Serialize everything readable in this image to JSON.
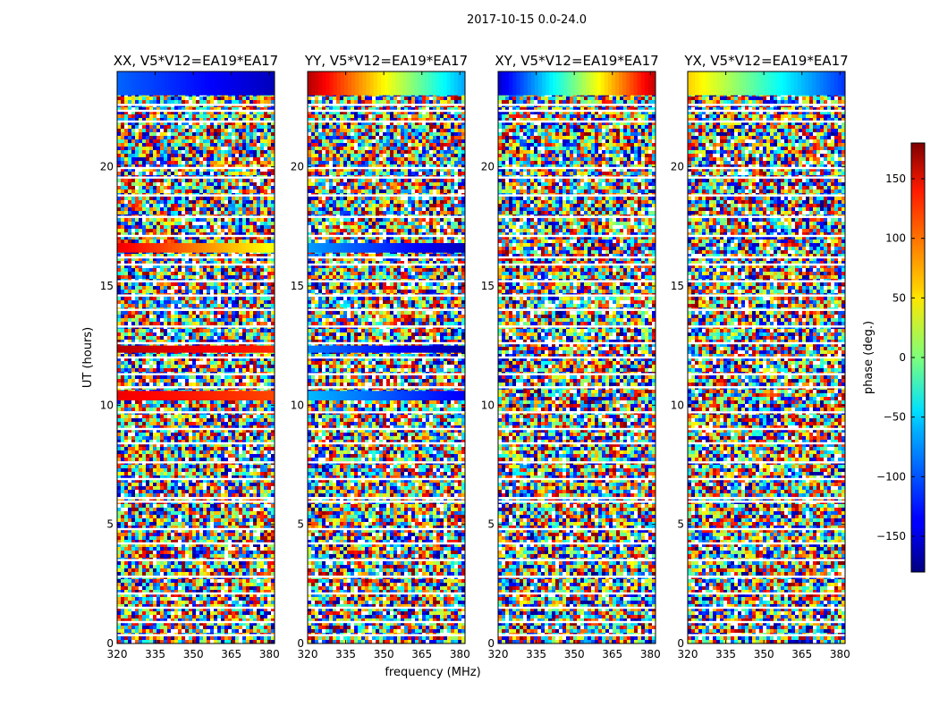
{
  "figure": {
    "suptitle": "2017-10-15 0.0-24.0"
  },
  "chart_data": [
    {
      "type": "heatmap",
      "title": "XX, V5*V12=EA19*EA17",
      "xlabel": "",
      "ylabel": "UT (hours)",
      "xlim": [
        320,
        382
      ],
      "ylim": [
        0,
        24
      ],
      "xticks": [
        320,
        335,
        350,
        365,
        380
      ],
      "yticks": [
        0,
        5,
        10,
        15,
        20
      ],
      "bands": [
        {
          "from": 23.0,
          "to": 24.0,
          "phase_start": -100,
          "phase_end": -160
        },
        {
          "from": 16.4,
          "to": 16.8,
          "phase_start": 140,
          "phase_end": 40
        },
        {
          "from": 12.2,
          "to": 12.5,
          "phase_start": 160,
          "phase_end": 120
        },
        {
          "from": 10.2,
          "to": 10.6,
          "phase_start": 140,
          "phase_end": 110
        }
      ]
    },
    {
      "type": "heatmap",
      "title": "YY, V5*V12=EA19*EA17",
      "xlabel": "frequency (MHz)",
      "ylabel": "",
      "xlim": [
        320,
        382
      ],
      "ylim": [
        0,
        24
      ],
      "xticks": [
        320,
        335,
        350,
        365,
        380
      ],
      "yticks": [
        0,
        5,
        10,
        15,
        20
      ],
      "bands": [
        {
          "from": 23.0,
          "to": 24.0,
          "phase_start": 160,
          "phase_end": -80
        },
        {
          "from": 16.4,
          "to": 16.8,
          "phase_start": -80,
          "phase_end": -160
        },
        {
          "from": 12.2,
          "to": 12.5,
          "phase_start": -90,
          "phase_end": -170
        },
        {
          "from": 10.2,
          "to": 10.6,
          "phase_start": -70,
          "phase_end": -140
        }
      ]
    },
    {
      "type": "heatmap",
      "title": "XY, V5*V12=EA19*EA17",
      "xlabel": "",
      "ylabel": "",
      "xlim": [
        320,
        382
      ],
      "ylim": [
        0,
        24
      ],
      "xticks": [
        320,
        335,
        350,
        365,
        380
      ],
      "yticks": [
        0,
        5,
        10,
        15,
        20
      ],
      "bands": [
        {
          "from": 23.0,
          "to": 24.0,
          "phase_start": -150,
          "phase_end": 160
        }
      ]
    },
    {
      "type": "heatmap",
      "title": "YX, V5*V12=EA19*EA17",
      "xlabel": "",
      "ylabel": "",
      "xlim": [
        320,
        382
      ],
      "ylim": [
        0,
        24
      ],
      "xticks": [
        320,
        335,
        350,
        365,
        380
      ],
      "yticks": [
        0,
        5,
        10,
        15,
        20
      ],
      "bands": [
        {
          "from": 23.0,
          "to": 24.0,
          "phase_start": 60,
          "phase_end": -120
        }
      ]
    }
  ],
  "colorbar": {
    "label": "phase (deg.)",
    "range": [
      -180,
      180
    ],
    "ticks": [
      -150,
      -100,
      -50,
      0,
      50,
      100,
      150
    ],
    "tick_labels": [
      "−150",
      "−100",
      "−50",
      "0",
      "50",
      "100",
      "150"
    ],
    "colormap": "jet"
  }
}
